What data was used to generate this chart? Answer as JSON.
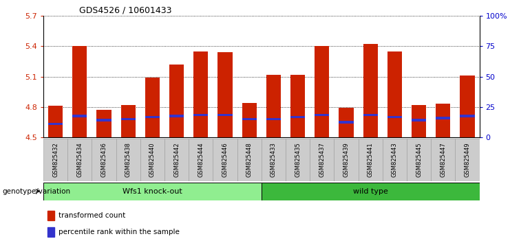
{
  "title": "GDS4526 / 10601433",
  "samples": [
    "GSM825432",
    "GSM825434",
    "GSM825436",
    "GSM825438",
    "GSM825440",
    "GSM825442",
    "GSM825444",
    "GSM825446",
    "GSM825448",
    "GSM825433",
    "GSM825435",
    "GSM825437",
    "GSM825439",
    "GSM825441",
    "GSM825443",
    "GSM825445",
    "GSM825447",
    "GSM825449"
  ],
  "red_values": [
    4.81,
    5.4,
    4.77,
    4.82,
    5.09,
    5.22,
    5.35,
    5.34,
    4.84,
    5.12,
    5.12,
    5.4,
    4.79,
    5.42,
    5.35,
    4.82,
    4.83,
    5.11
  ],
  "blue_values": [
    4.63,
    4.71,
    4.67,
    4.68,
    4.7,
    4.71,
    4.72,
    4.72,
    4.68,
    4.68,
    4.7,
    4.72,
    4.65,
    4.72,
    4.7,
    4.67,
    4.69,
    4.71
  ],
  "ymin": 4.5,
  "ymax": 5.7,
  "yticks_left": [
    4.5,
    4.8,
    5.1,
    5.4,
    5.7
  ],
  "yticks_right": [
    0,
    25,
    50,
    75,
    100
  ],
  "ytick_right_labels": [
    "0",
    "25",
    "50",
    "75",
    "100%"
  ],
  "groups": [
    {
      "label": "Wfs1 knock-out",
      "start": 0,
      "end": 9,
      "color": "#90EE90"
    },
    {
      "label": "wild type",
      "start": 9,
      "end": 18,
      "color": "#3CB83C"
    }
  ],
  "group_label_prefix": "genotype/variation",
  "legend_red_label": "transformed count",
  "legend_blue_label": "percentile rank within the sample",
  "bar_color": "#CC2200",
  "blue_color": "#3333CC",
  "bar_width": 0.6,
  "background_color": "#FFFFFF",
  "plot_bg": "#FFFFFF",
  "label_color_left": "#CC2200",
  "label_color_right": "#0000CC",
  "grid_color": "#000000"
}
